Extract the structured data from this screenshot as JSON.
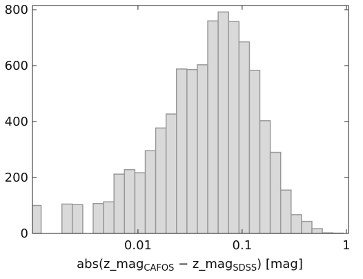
{
  "chart_data": {
    "type": "histogram",
    "bins": [
      0.000933,
      0.001175,
      0.001479,
      0.001862,
      0.002344,
      0.002951,
      0.003715,
      0.004677,
      0.005888,
      0.007413,
      0.009333,
      0.01175,
      0.01479,
      0.01862,
      0.02344,
      0.02951,
      0.03715,
      0.04677,
      0.05888,
      0.07413,
      0.09333,
      0.1175,
      0.1479,
      0.1862,
      0.2344,
      0.2951,
      0.3715,
      0.4677,
      0.5888,
      0.7413,
      0.9333
    ],
    "values": [
      100,
      0,
      0,
      105,
      103,
      0,
      107,
      113,
      212,
      228,
      217,
      296,
      377,
      427,
      588,
      586,
      603,
      760,
      792,
      758,
      685,
      583,
      403,
      290,
      155,
      67,
      43,
      17,
      2,
      1
    ],
    "color": "#d9d9d9",
    "edge_color": "#999999",
    "xlabel": [
      "abs(z_mag",
      "CAFOS",
      " − z_mag",
      "SDSS",
      ") [mag]"
    ],
    "xscale": "log",
    "xlim": [
      0.00097,
      1.05
    ],
    "xticks": [
      0.01,
      0.1,
      1
    ],
    "ylim": [
      0,
      815
    ],
    "yticks": [
      0,
      200,
      400,
      600,
      800
    ]
  }
}
